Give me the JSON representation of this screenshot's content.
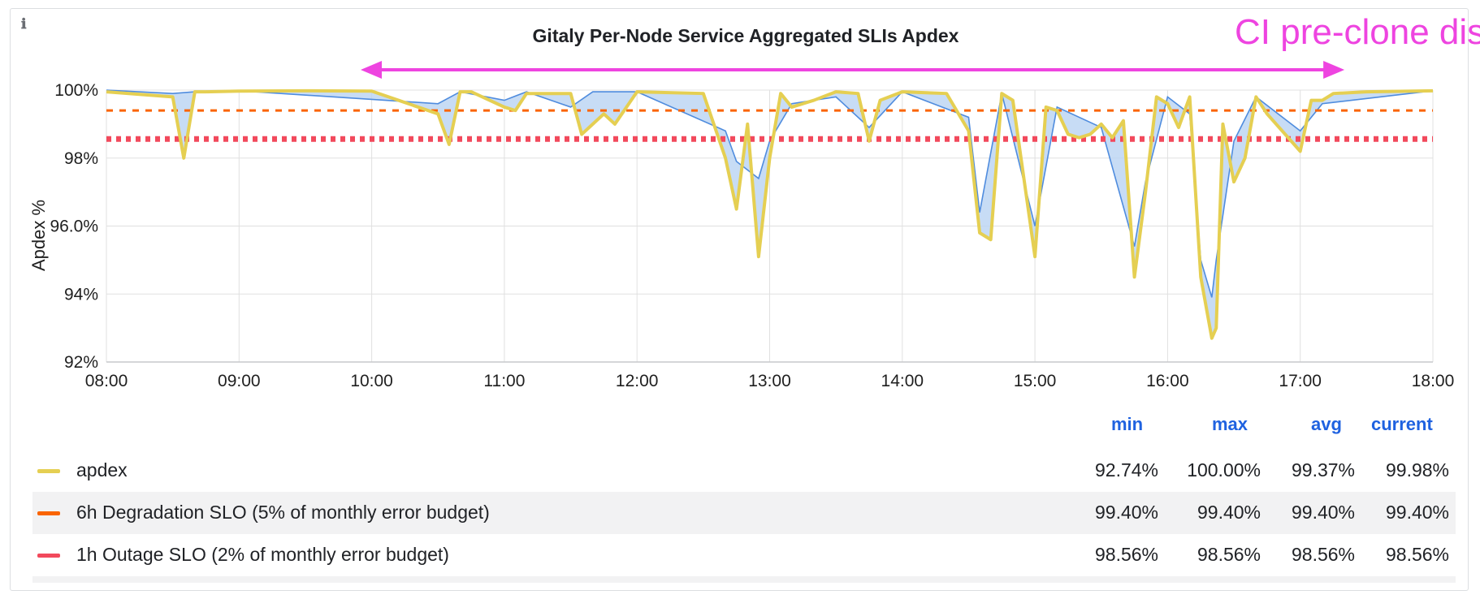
{
  "chart_data": {
    "type": "line",
    "title": "Gitaly Per-Node Service Aggregated SLIs Apdex",
    "annotation": "CI pre-clone disabled",
    "annotation_range": [
      "09:55",
      "17:20"
    ],
    "ylabel": "Apdex %",
    "xlabel": "",
    "ylim": [
      92,
      100
    ],
    "xlim": [
      "08:00",
      "18:00"
    ],
    "grid": true,
    "legend_placement": "bottom",
    "x_ticks": [
      "08:00",
      "09:00",
      "10:00",
      "11:00",
      "12:00",
      "13:00",
      "14:00",
      "15:00",
      "16:00",
      "17:00",
      "18:00"
    ],
    "y_ticks": [
      {
        "value": 100,
        "label": "100%"
      },
      {
        "value": 98,
        "label": "98%"
      },
      {
        "value": 96,
        "label": "96.0%"
      },
      {
        "value": 94,
        "label": "94%"
      },
      {
        "value": 92,
        "label": "92%"
      }
    ],
    "series": [
      {
        "name": "apdex",
        "color": "#e5cf52",
        "x": [
          "08:00",
          "08:30",
          "08:35",
          "08:40",
          "08:45",
          "09:00",
          "09:30",
          "10:00",
          "10:30",
          "10:35",
          "10:40",
          "10:45",
          "11:00",
          "11:05",
          "11:10",
          "11:30",
          "11:35",
          "11:40",
          "11:45",
          "11:50",
          "12:00",
          "12:30",
          "12:40",
          "12:45",
          "12:50",
          "12:55",
          "13:00",
          "13:05",
          "13:10",
          "13:20",
          "13:30",
          "13:40",
          "13:45",
          "13:50",
          "14:00",
          "14:20",
          "14:30",
          "14:35",
          "14:40",
          "14:45",
          "14:50",
          "15:00",
          "15:05",
          "15:10",
          "15:15",
          "15:20",
          "15:25",
          "15:30",
          "15:35",
          "15:40",
          "15:45",
          "15:50",
          "15:55",
          "16:00",
          "16:05",
          "16:10",
          "16:15",
          "16:20",
          "16:22",
          "16:25",
          "16:30",
          "16:35",
          "16:40",
          "16:45",
          "17:00",
          "17:05",
          "17:10",
          "17:15",
          "17:30",
          "18:00"
        ],
        "values": [
          99.95,
          99.8,
          98.0,
          99.95,
          99.95,
          99.97,
          99.98,
          99.97,
          99.3,
          98.4,
          99.95,
          99.95,
          99.5,
          99.4,
          99.9,
          99.9,
          98.7,
          99.0,
          99.3,
          99.0,
          99.95,
          99.9,
          98.0,
          96.5,
          99.0,
          95.1,
          98.0,
          99.9,
          99.5,
          99.7,
          99.95,
          99.9,
          98.5,
          99.7,
          99.95,
          99.9,
          98.8,
          95.8,
          95.6,
          99.9,
          99.7,
          95.1,
          99.5,
          99.4,
          98.7,
          98.6,
          98.7,
          99.0,
          98.6,
          99.1,
          94.5,
          97.0,
          99.8,
          99.6,
          98.9,
          99.8,
          94.5,
          92.7,
          93.0,
          99.0,
          97.3,
          98.0,
          99.8,
          99.3,
          98.2,
          99.7,
          99.7,
          99.9,
          99.95,
          99.98
        ]
      },
      {
        "name": "6h Degradation SLO (5% of monthly error budget)",
        "color": "#fa6400",
        "x": [
          "08:00",
          "18:00"
        ],
        "values": [
          99.4,
          99.4
        ]
      },
      {
        "name": "1h Outage SLO (2% of monthly error budget)",
        "color": "#f2495c",
        "x": [
          "08:00",
          "18:00"
        ],
        "values": [
          98.56,
          98.56
        ]
      }
    ],
    "band": {
      "color": "#4f8cde",
      "fill": "#b9d3f2",
      "x": [
        "08:00",
        "08:30",
        "08:40",
        "09:00",
        "10:30",
        "10:40",
        "11:00",
        "11:10",
        "11:30",
        "11:40",
        "12:00",
        "12:40",
        "12:45",
        "12:55",
        "13:00",
        "13:10",
        "13:30",
        "13:45",
        "14:00",
        "14:30",
        "14:35",
        "14:45",
        "15:00",
        "15:10",
        "15:30",
        "15:45",
        "15:50",
        "16:00",
        "16:10",
        "16:15",
        "16:20",
        "16:22",
        "16:30",
        "16:40",
        "17:00",
        "17:10",
        "18:00"
      ],
      "values": [
        100,
        99.9,
        99.95,
        99.98,
        99.6,
        99.95,
        99.7,
        99.95,
        99.5,
        99.95,
        99.95,
        98.8,
        97.9,
        97.4,
        98.5,
        99.6,
        99.8,
        98.9,
        99.95,
        99.2,
        96.4,
        99.9,
        96.0,
        99.5,
        98.9,
        95.4,
        97.3,
        99.8,
        99.3,
        95.0,
        93.9,
        95.0,
        98.5,
        99.8,
        98.8,
        99.6,
        99.98
      ]
    },
    "stats_headers": [
      "min",
      "max",
      "avg",
      "current"
    ],
    "stats": [
      {
        "name": "apdex",
        "min": "92.74%",
        "max": "100.00%",
        "avg": "99.37%",
        "current": "99.98%"
      },
      {
        "name": "6h Degradation SLO (5% of monthly error budget)",
        "min": "99.40%",
        "max": "99.40%",
        "avg": "99.40%",
        "current": "99.40%"
      },
      {
        "name": "1h Outage SLO (2% of monthly error budget)",
        "min": "98.56%",
        "max": "98.56%",
        "avg": "98.56%",
        "current": "98.56%"
      }
    ]
  },
  "colors": {
    "annotation": "#ee44e0",
    "grid": "#e0e0e0",
    "axis_text": "#1f1f1f",
    "legend_header": "#1f62e0"
  },
  "icons": {
    "info": "info-icon"
  },
  "info_glyph": "ℹ"
}
